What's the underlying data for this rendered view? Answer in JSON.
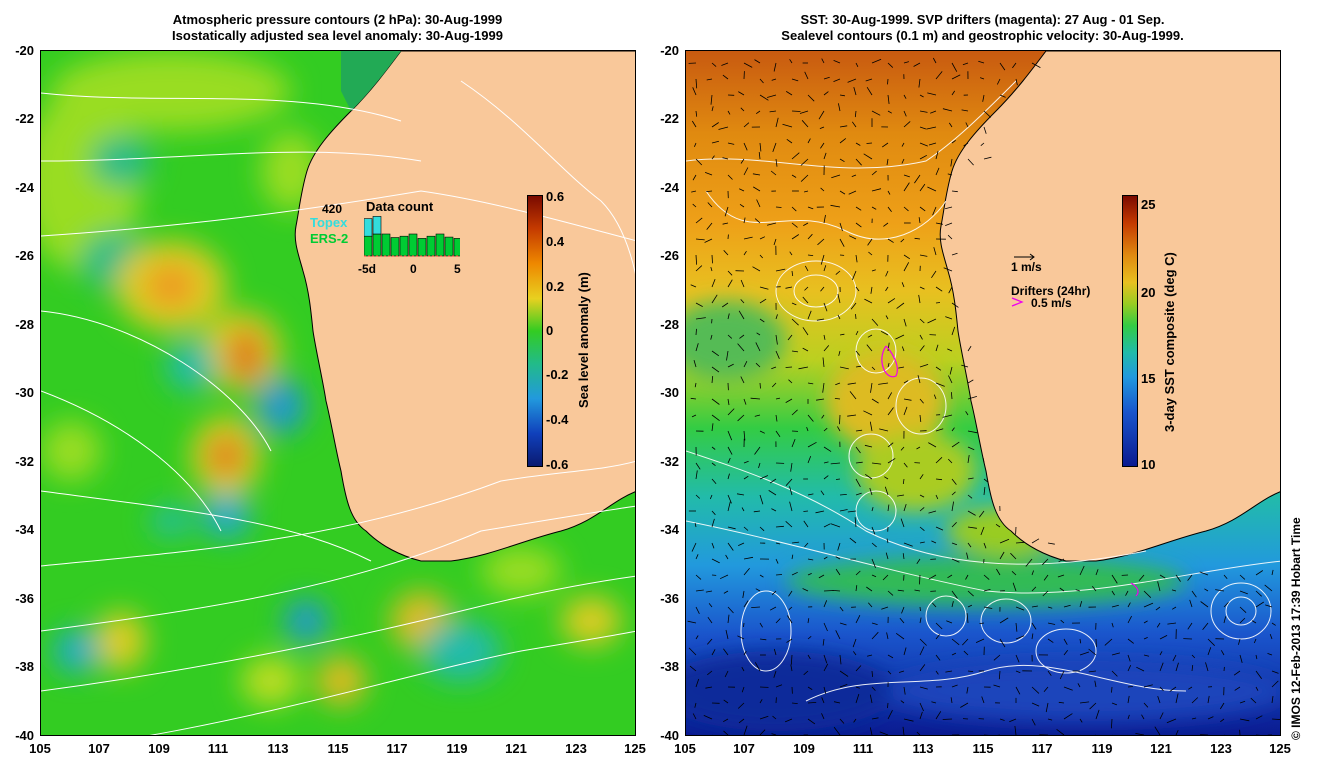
{
  "left_panel": {
    "title_line1": "Atmospheric pressure contours (2 hPa): 30-Aug-1999",
    "title_line2": "Isostatically adjusted sea level anomaly: 30-Aug-1999",
    "colorbar": {
      "title": "Sea level anomaly (m)",
      "ticks": [
        "0.6",
        "0.4",
        "0.2",
        "0",
        "-0.2",
        "-0.4",
        "-0.6"
      ]
    },
    "data_count": {
      "title": "Data count",
      "max_label": "420",
      "sat1": "Topex",
      "sat2": "ERS-2",
      "sat1_color": "#33dddd",
      "sat2_color": "#00cc33",
      "x_ticks": [
        "-5d",
        "0",
        "5"
      ],
      "bars": [
        {
          "topex": 0.4,
          "ers": 0.45
        },
        {
          "topex": 0.4,
          "ers": 0.5
        },
        {
          "topex": 0,
          "ers": 0.5
        },
        {
          "topex": 0,
          "ers": 0.42
        },
        {
          "topex": 0,
          "ers": 0.45
        },
        {
          "topex": 0,
          "ers": 0.5
        },
        {
          "topex": 0,
          "ers": 0.4
        },
        {
          "topex": 0,
          "ers": 0.45
        },
        {
          "topex": 0,
          "ers": 0.5
        },
        {
          "topex": 0,
          "ers": 0.43
        },
        {
          "topex": 0,
          "ers": 0.4
        }
      ]
    }
  },
  "right_panel": {
    "title_line1": "SST: 30-Aug-1999. SVP drifters (magenta): 27 Aug - 01 Sep.",
    "title_line2": "Sealevel contours (0.1 m) and geostrophic velocity: 30-Aug-1999.",
    "colorbar": {
      "title": "3-day SST composite (deg C)",
      "ticks": [
        "25",
        "20",
        "15",
        "10"
      ]
    },
    "velocity_scale_label": "1 m/s",
    "drifters_label": "Drifters (24hr)",
    "drifter_speed_label": "0.5 m/s",
    "drifter_color": "#ee00ee"
  },
  "axes": {
    "lat_ticks": [
      "-20",
      "-22",
      "-24",
      "-26",
      "-28",
      "-30",
      "-32",
      "-34",
      "-36",
      "-38",
      "-40"
    ],
    "lon_ticks": [
      "105",
      "107",
      "109",
      "111",
      "113",
      "115",
      "117",
      "119",
      "121",
      "123",
      "125"
    ],
    "lat_range": [
      -40,
      -20
    ],
    "lon_range": [
      105,
      125
    ]
  },
  "colors": {
    "land": "#f9c89a",
    "ocean_sla": "#33cc22",
    "sst_warm": "#e08a10",
    "sst_cool": "#1040c0"
  },
  "credit": "© IMOS 12-Feb-2013 17:39 Hobart Time"
}
